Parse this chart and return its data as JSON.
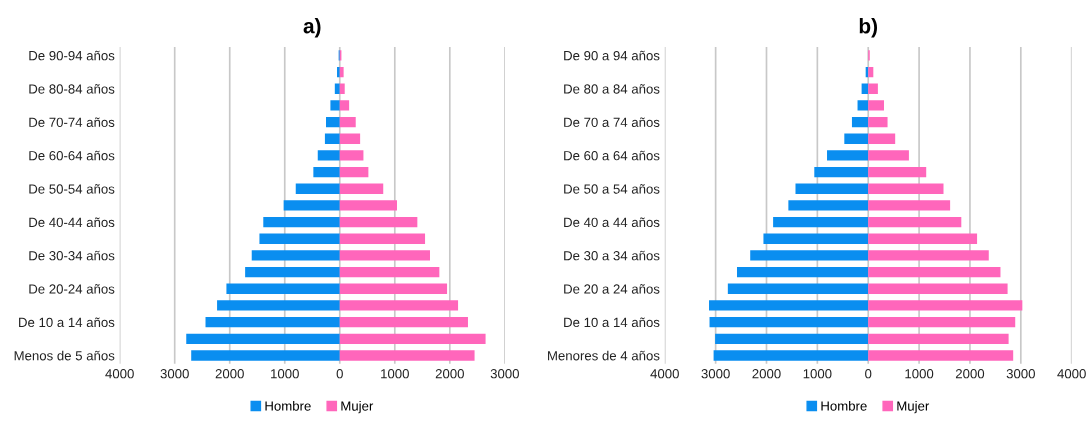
{
  "chart_data": [
    {
      "type": "bar",
      "title": "a)",
      "orientation": "horizontal",
      "stacked": true,
      "grid": "x",
      "legend": "bottom",
      "categories": [
        "De 90-94 años",
        null,
        "De 80-84 años",
        null,
        "De 70-74 años",
        null,
        "De 60-64 años",
        null,
        "De 50-54 años",
        null,
        "De 40-44 años",
        null,
        "De 30-34 años",
        null,
        "De 20-24 años",
        null,
        "De 10 a 14 años",
        null,
        "Menos de 5 años"
      ],
      "series": [
        {
          "name": "Hombre",
          "color": "#0a8ef0",
          "values": [
            -20,
            -50,
            -90,
            -170,
            -250,
            -270,
            -400,
            -480,
            -800,
            -1020,
            -1390,
            -1460,
            -1600,
            -1720,
            -2060,
            -2230,
            -2440,
            -2790,
            -2700
          ]
        },
        {
          "name": "Mujer",
          "color": "#ff66bb",
          "values": [
            30,
            70,
            90,
            170,
            290,
            370,
            430,
            520,
            790,
            1040,
            1410,
            1550,
            1640,
            1810,
            1950,
            2150,
            2330,
            2650,
            2450
          ]
        }
      ],
      "xlim": [
        -4000,
        3000
      ],
      "xticks": [
        {
          "value": -4000,
          "label": "4000"
        },
        {
          "value": -3000,
          "label": "3000"
        },
        {
          "value": -2000,
          "label": "2000"
        },
        {
          "value": -1000,
          "label": "1000"
        },
        0,
        1000,
        2000,
        3000
      ]
    },
    {
      "type": "bar",
      "title": "b)",
      "orientation": "horizontal",
      "stacked": true,
      "grid": "x",
      "legend": "bottom",
      "categories": [
        "De 90 a 94 años",
        null,
        "De 80 a 84 años",
        null,
        "De 70 a 74 años",
        null,
        "De 60 a 64 años",
        null,
        "De 50 a 54 años",
        null,
        "De 40 a 44 años",
        null,
        "De 30 a 34 años",
        null,
        "De 20 a 24 años",
        null,
        "De 10 a 14 años",
        null,
        "Menores de 4 años"
      ],
      "series": [
        {
          "name": "Hombre",
          "color": "#0a8ef0",
          "values": [
            null,
            -50,
            -130,
            -210,
            -320,
            -470,
            -810,
            -1060,
            -1430,
            -1570,
            -1870,
            -2060,
            -2320,
            -2580,
            -2760,
            -3130,
            -3120,
            -3010,
            -3040
          ]
        },
        {
          "name": "Mujer",
          "color": "#ff66bb",
          "values": [
            30,
            100,
            190,
            310,
            380,
            530,
            800,
            1140,
            1480,
            1610,
            1830,
            2140,
            2370,
            2600,
            2740,
            3030,
            2890,
            2760,
            2850
          ]
        }
      ],
      "xlim": [
        -4000,
        4000
      ],
      "xticks": [
        {
          "value": -4000,
          "label": "4000"
        },
        {
          "value": -3000,
          "label": "3000"
        },
        {
          "value": -2000,
          "label": "2000"
        },
        {
          "value": -1000,
          "label": "1000"
        },
        0,
        1000,
        2000,
        3000,
        4000
      ]
    }
  ]
}
